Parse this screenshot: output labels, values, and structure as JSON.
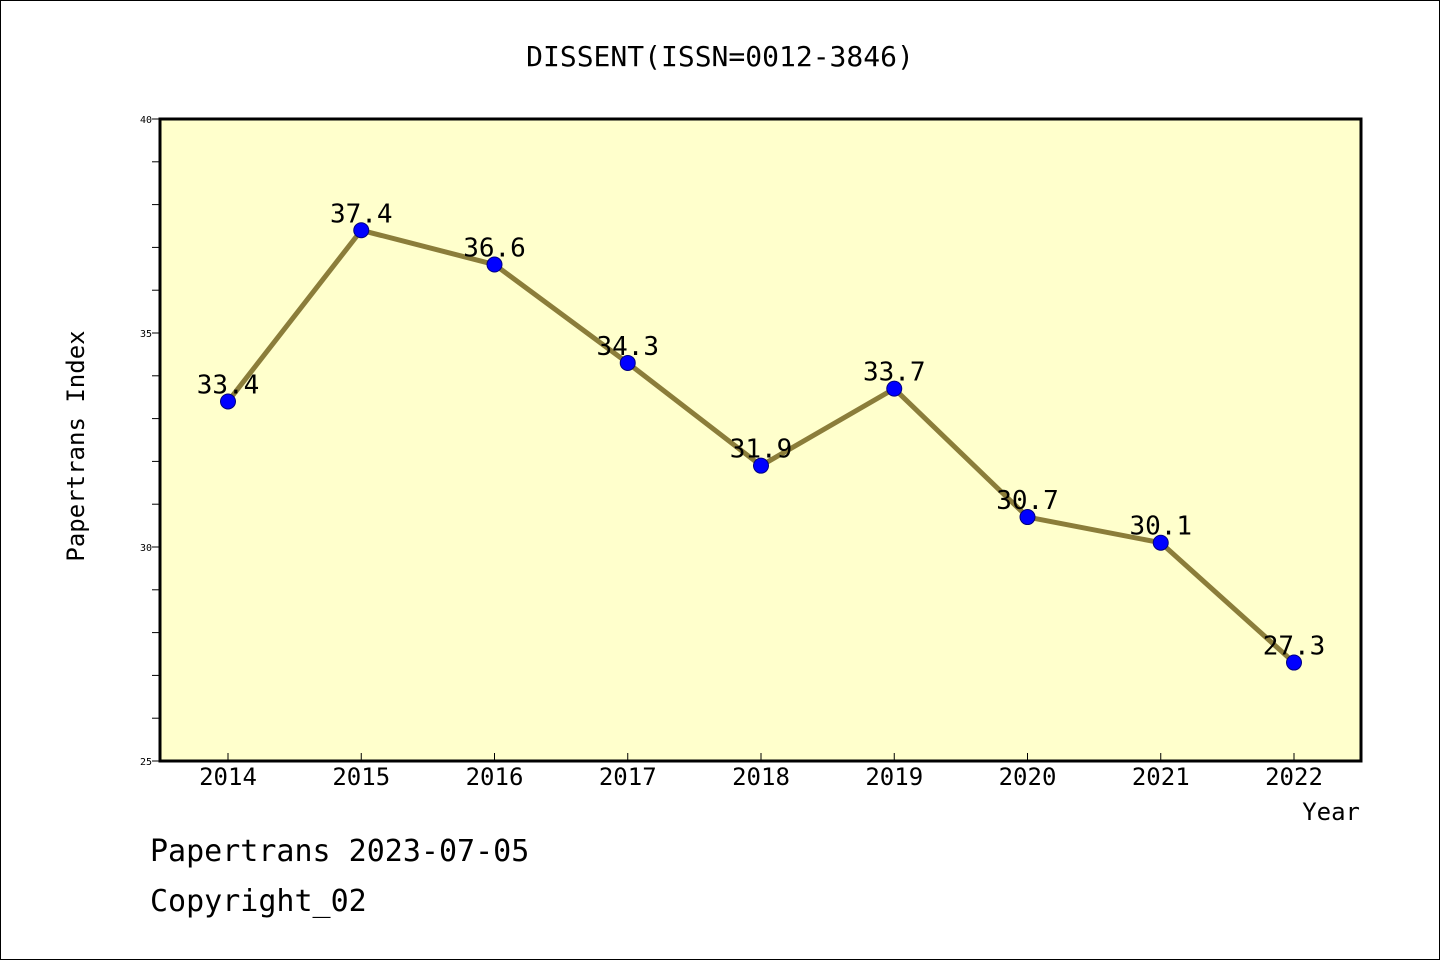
{
  "chart_data": {
    "type": "line",
    "title": "DISSENT(ISSN=0012-3846)",
    "xlabel": "Year",
    "ylabel": "Papertrans Index",
    "categories": [
      "2014",
      "2015",
      "2016",
      "2017",
      "2018",
      "2019",
      "2020",
      "2021",
      "2022"
    ],
    "series": [
      {
        "values": [
          33.4,
          37.4,
          36.6,
          34.3,
          31.9,
          33.7,
          30.7,
          30.1,
          27.3
        ]
      }
    ],
    "data_labels": [
      "33.4",
      "37.4",
      "36.6",
      "34.3",
      "31.9",
      "33.7",
      "30.7",
      "30.1",
      "27.3"
    ],
    "ylim": [
      25,
      40
    ],
    "y_ticks": [
      "25",
      "30",
      "35",
      "40"
    ],
    "y_minor_step": 1,
    "grid": false,
    "colors": {
      "plot_background": "#ffffcc",
      "line": "#8b7d3a",
      "marker": "#0000ff",
      "marker_edge": "#000080"
    }
  },
  "footer": {
    "line1": "Papertrans 2023-07-05",
    "line2": "Copyright_02"
  }
}
